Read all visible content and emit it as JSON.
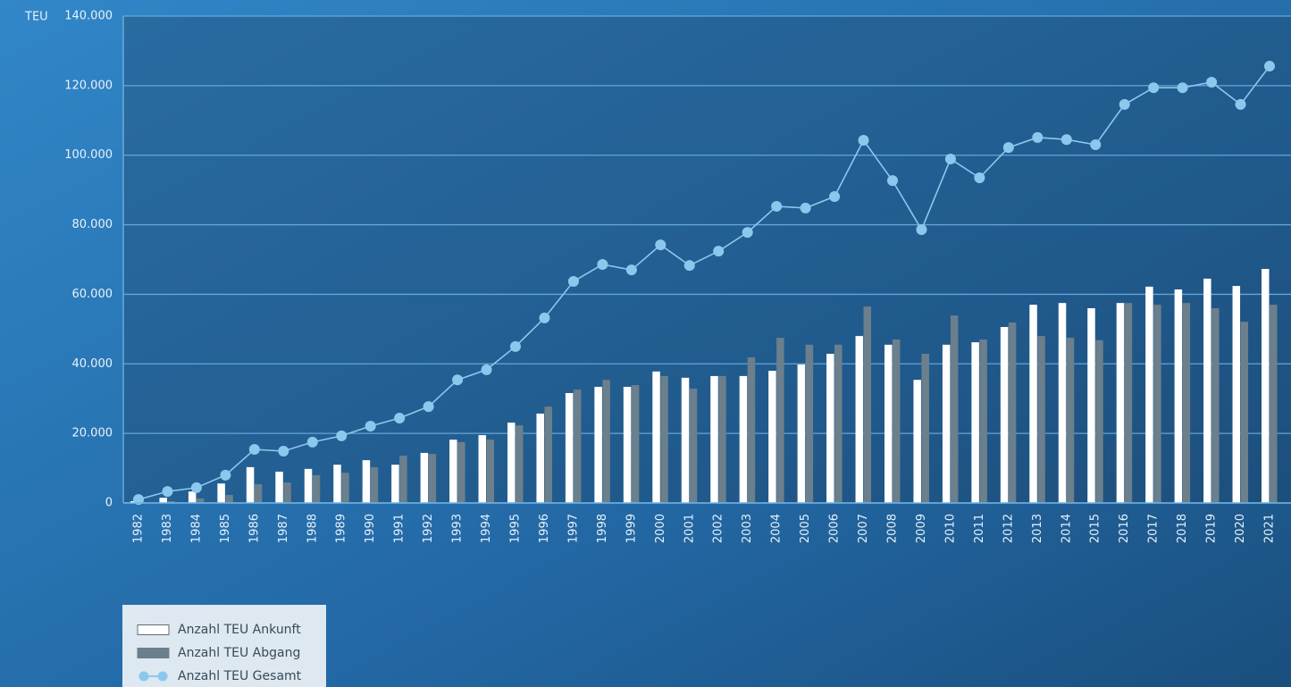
{
  "chart_data": {
    "type": "bar",
    "y_label": "TEU",
    "categories": [
      "1982",
      "1983",
      "1984",
      "1985",
      "1986",
      "1987",
      "1988",
      "1989",
      "1990",
      "1991",
      "1992",
      "1993",
      "1994",
      "1995",
      "1996",
      "1997",
      "1998",
      "1999",
      "2000",
      "2001",
      "2002",
      "2003",
      "2004",
      "2005",
      "2006",
      "2007",
      "2008",
      "2009",
      "2010",
      "2011",
      "2012",
      "2013",
      "2014",
      "2015",
      "2016",
      "2017",
      "2018",
      "2019",
      "2020",
      "2021"
    ],
    "series": [
      {
        "name": "Anzahl TEU Ankunft",
        "type": "bar",
        "color": "#ffffff",
        "values": [
          500,
          1500,
          3300,
          5600,
          10300,
          9000,
          9800,
          11000,
          12300,
          11000,
          14400,
          18200,
          19500,
          23100,
          25700,
          31600,
          33400,
          33400,
          37800,
          36000,
          36500,
          36500,
          38000,
          39800,
          42900,
          48000,
          45500,
          35400,
          45500,
          46200,
          50600,
          57000,
          57500,
          56000,
          57500,
          62200,
          61400,
          64500,
          62400,
          67300
        ]
      },
      {
        "name": "Anzahl TEU Abgang",
        "type": "bar",
        "color": "#6b7f8c",
        "values": [
          300,
          500,
          1300,
          2300,
          5400,
          5900,
          8000,
          8700,
          10300,
          13600,
          14100,
          17500,
          18200,
          22300,
          27700,
          32600,
          35400,
          33900,
          36500,
          32900,
          36500,
          41900,
          47500,
          45500,
          45500,
          56500,
          47000,
          42900,
          53900,
          47000,
          51900,
          48000,
          47500,
          46800,
          57500,
          57000,
          57500,
          56000,
          52100,
          57000
        ]
      },
      {
        "name": "Anzahl TEU Gesamt",
        "type": "line",
        "color": "#8cc8ee",
        "values": [
          1000,
          3300,
          4400,
          8000,
          15400,
          14900,
          17500,
          19300,
          22100,
          24400,
          27700,
          35400,
          38300,
          45000,
          53200,
          63700,
          68600,
          67000,
          74200,
          68300,
          72400,
          77800,
          85300,
          84800,
          88100,
          104300,
          92700,
          78600,
          98900,
          93500,
          102200,
          105100,
          104500,
          103000,
          114600,
          119400,
          119400,
          121000,
          114600,
          125600
        ]
      }
    ],
    "ylim": [
      0,
      140000
    ],
    "yticks": [
      0,
      {
        "value": 20000,
        "label": "20.000"
      },
      {
        "value": 40000,
        "label": "40.000"
      },
      {
        "value": 60000,
        "label": "60.000"
      },
      {
        "value": 80000,
        "label": "80.000"
      },
      {
        "value": 100000,
        "label": "100.000"
      },
      {
        "value": 120000,
        "label": "120.000"
      },
      {
        "value": 140000,
        "label": "140.000"
      }
    ],
    "grid": true
  }
}
